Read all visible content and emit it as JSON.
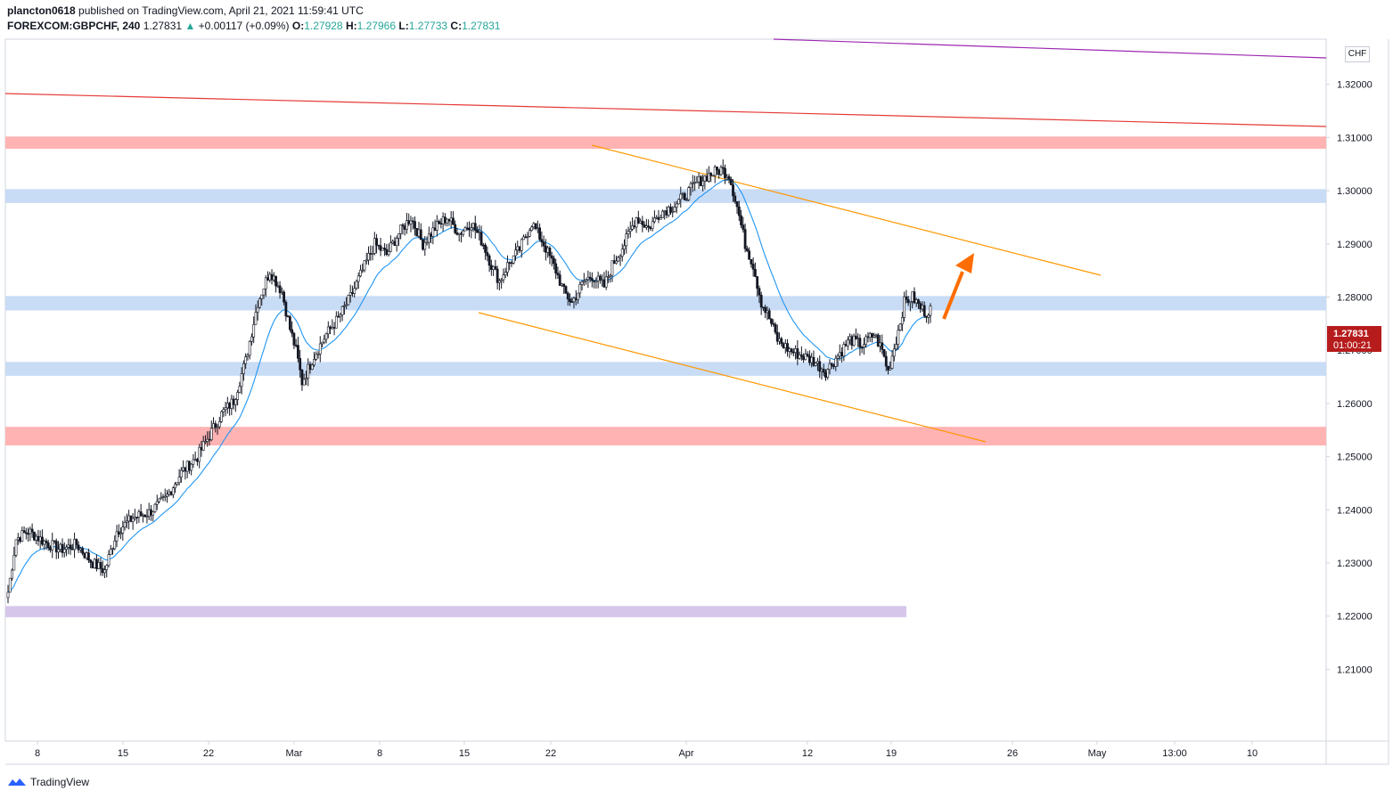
{
  "header": {
    "author": "plancton0618",
    "published_text": "published on TradingView.com, April 21, 2021 11:59:41 UTC",
    "symbol": "FOREXCOM:GBPCHF, 240",
    "last": "1.27831",
    "change_arrow": "▲",
    "change": "+0.00117 (+0.09%)",
    "o_label": "O:",
    "o_value": "1.27928",
    "h_label": "H:",
    "h_value": "1.27966",
    "l_label": "L:",
    "l_value": "1.27733",
    "c_label": "C:",
    "c_value": "1.27831"
  },
  "currency_button": "CHF",
  "price_label": {
    "price": "1.27831",
    "countdown": "01:00:21"
  },
  "footer": {
    "brand": "TradingView"
  },
  "colors": {
    "up": "#ffffff",
    "down": "#131722",
    "ema": "#2196f3",
    "resistance_zone": "#ffb3b3",
    "support_zone": "#c9dcf5",
    "purple_zone": "#d6c7ea",
    "channel": "#ff9800",
    "red_line": "#e53935",
    "purple_line": "#9c27b0",
    "arrow": "#ff6d00"
  },
  "chart_data": {
    "type": "candlestick",
    "symbol": "GBPCHF",
    "timeframe": "240",
    "ylim": [
      1.1965,
      1.3285
    ],
    "y_ticks": [
      "1.32000",
      "1.31000",
      "1.30000",
      "1.29000",
      "1.28000",
      "1.27000",
      "1.26000",
      "1.25000",
      "1.24000",
      "1.23000",
      "1.22000",
      "1.21000"
    ],
    "x_ticks": [
      "8",
      "15",
      "22",
      "Mar",
      "8",
      "15",
      "22",
      "Apr",
      "12",
      "19",
      "26",
      "May",
      "13:00",
      "10"
    ],
    "close_path": [
      [
        0,
        1.2245
      ],
      [
        4,
        1.2345
      ],
      [
        10,
        1.236
      ],
      [
        18,
        1.234
      ],
      [
        26,
        1.2325
      ],
      [
        34,
        1.2335
      ],
      [
        42,
        1.23
      ],
      [
        48,
        1.2285
      ],
      [
        54,
        1.236
      ],
      [
        62,
        1.2385
      ],
      [
        70,
        1.2395
      ],
      [
        78,
        1.242
      ],
      [
        86,
        1.247
      ],
      [
        94,
        1.25
      ],
      [
        100,
        1.254
      ],
      [
        106,
        1.258
      ],
      [
        112,
        1.2605
      ],
      [
        118,
        1.268
      ],
      [
        124,
        1.279
      ],
      [
        130,
        1.285
      ],
      [
        136,
        1.281
      ],
      [
        140,
        1.274
      ],
      [
        143,
        1.27
      ],
      [
        146,
        1.264
      ],
      [
        152,
        1.269
      ],
      [
        158,
        1.273
      ],
      [
        164,
        1.276
      ],
      [
        170,
        1.28
      ],
      [
        176,
        1.285
      ],
      [
        182,
        1.29
      ],
      [
        188,
        1.288
      ],
      [
        194,
        1.292
      ],
      [
        200,
        1.295
      ],
      [
        206,
        1.29
      ],
      [
        212,
        1.293
      ],
      [
        218,
        1.295
      ],
      [
        224,
        1.292
      ],
      [
        230,
        1.294
      ],
      [
        236,
        1.29
      ],
      [
        240,
        1.286
      ],
      [
        244,
        1.283
      ],
      [
        248,
        1.286
      ],
      [
        254,
        1.289
      ],
      [
        260,
        1.294
      ],
      [
        266,
        1.29
      ],
      [
        272,
        1.285
      ],
      [
        276,
        1.281
      ],
      [
        280,
        1.279
      ],
      [
        286,
        1.283
      ],
      [
        290,
        1.284
      ],
      [
        296,
        1.282
      ],
      [
        300,
        1.286
      ],
      [
        306,
        1.29
      ],
      [
        312,
        1.295
      ],
      [
        318,
        1.293
      ],
      [
        324,
        1.296
      ],
      [
        330,
        1.297
      ],
      [
        336,
        1.299
      ],
      [
        342,
        1.3015
      ],
      [
        348,
        1.303
      ],
      [
        354,
        1.304
      ],
      [
        358,
        1.303
      ],
      [
        362,
        1.297
      ],
      [
        366,
        1.29
      ],
      [
        370,
        1.286
      ],
      [
        374,
        1.279
      ],
      [
        378,
        1.276
      ],
      [
        382,
        1.272
      ],
      [
        388,
        1.27
      ],
      [
        394,
        1.269
      ],
      [
        400,
        1.268
      ],
      [
        406,
        1.266
      ],
      [
        412,
        1.269
      ],
      [
        418,
        1.272
      ],
      [
        424,
        1.271
      ],
      [
        430,
        1.273
      ],
      [
        434,
        1.27
      ],
      [
        437,
        1.266
      ],
      [
        441,
        1.272
      ],
      [
        445,
        1.279
      ],
      [
        449,
        1.28
      ],
      [
        453,
        1.278
      ],
      [
        456,
        1.277
      ],
      [
        458,
        1.2783
      ]
    ],
    "zones": [
      {
        "kind": "resistance",
        "from": 1.3079,
        "to": 1.3102
      },
      {
        "kind": "support",
        "from": 1.2977,
        "to": 1.3003
      },
      {
        "kind": "support",
        "from": 1.2775,
        "to": 1.2802
      },
      {
        "kind": "support",
        "from": 1.2652,
        "to": 1.2678
      },
      {
        "kind": "resistance",
        "from": 1.2521,
        "to": 1.2556
      },
      {
        "kind": "purple",
        "from": 1.2198,
        "to": 1.2219
      }
    ],
    "last_price": 1.27831
  }
}
